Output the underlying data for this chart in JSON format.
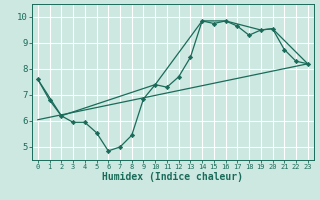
{
  "xlabel": "Humidex (Indice chaleur)",
  "bg_color": "#cce8e0",
  "grid_color": "#ffffff",
  "line_color": "#1a6b5a",
  "xlim": [
    -0.5,
    23.5
  ],
  "ylim": [
    4.5,
    10.5
  ],
  "yticks": [
    5,
    6,
    7,
    8,
    9,
    10
  ],
  "xticks": [
    0,
    1,
    2,
    3,
    4,
    5,
    6,
    7,
    8,
    9,
    10,
    11,
    12,
    13,
    14,
    15,
    16,
    17,
    18,
    19,
    20,
    21,
    22,
    23
  ],
  "line1_x": [
    0,
    1,
    2,
    3,
    4,
    5,
    6,
    7,
    8,
    9,
    10,
    11,
    12,
    13,
    14,
    15,
    16,
    17,
    18,
    19,
    20,
    21,
    22,
    23
  ],
  "line1_y": [
    7.6,
    6.8,
    6.2,
    5.95,
    5.95,
    5.55,
    4.85,
    5.0,
    5.45,
    6.85,
    7.4,
    7.3,
    7.7,
    8.45,
    9.85,
    9.75,
    9.85,
    9.65,
    9.3,
    9.5,
    9.55,
    8.75,
    8.3,
    8.2
  ],
  "line2_x": [
    0,
    2,
    10,
    14,
    16,
    19,
    20,
    23
  ],
  "line2_y": [
    7.6,
    6.2,
    7.4,
    9.85,
    9.85,
    9.5,
    9.55,
    8.2
  ],
  "line3_x": [
    0,
    23
  ],
  "line3_y": [
    6.05,
    8.2
  ]
}
